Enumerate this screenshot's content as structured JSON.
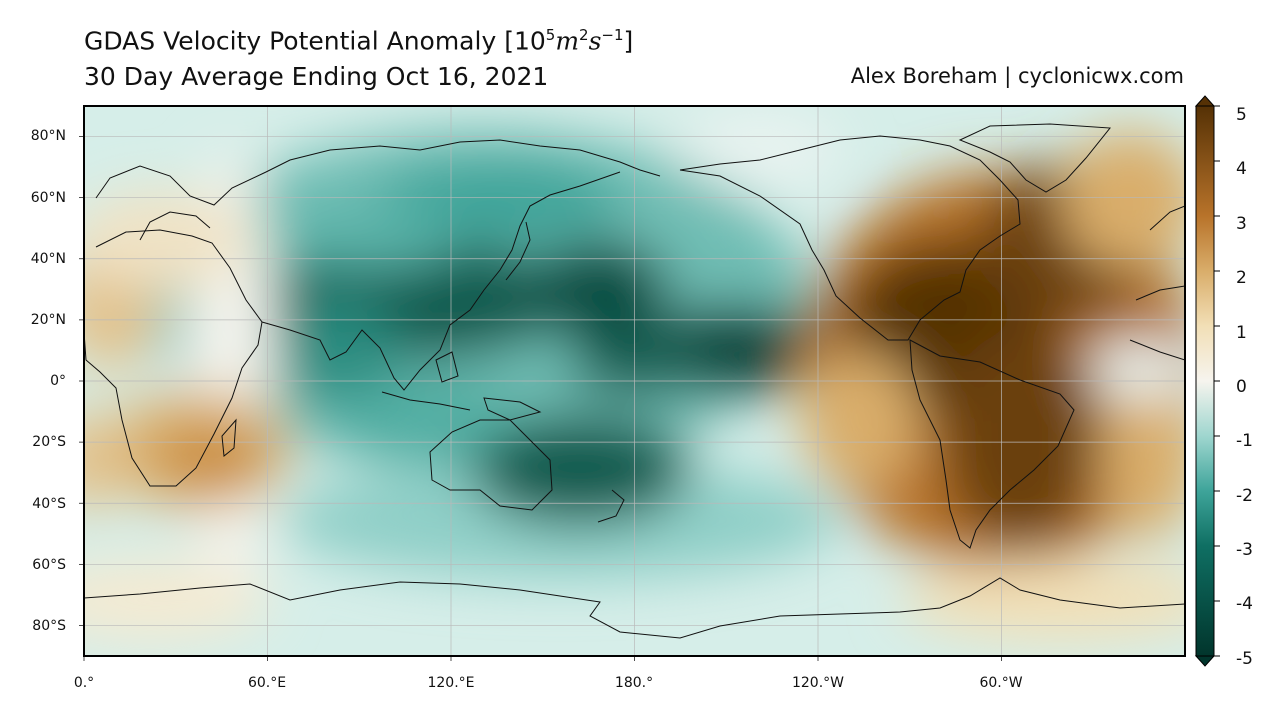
{
  "header": {
    "title_prefix": "GDAS Velocity Potential Anomaly [10",
    "title_exp1": "5",
    "title_m": "m",
    "title_exp2": "2",
    "title_s": "s",
    "title_exp3": "−1",
    "title_suffix": "]",
    "subtitle": "30 Day Average Ending Oct 16, 2021",
    "credit": "Alex Boreham | cyclonicwx.com"
  },
  "axes": {
    "lat_labels": [
      "80°N",
      "60°N",
      "40°N",
      "20°N",
      "0°",
      "20°S",
      "40°S",
      "60°S",
      "80°S"
    ],
    "lon_labels": [
      "0.°",
      "60.°E",
      "120.°E",
      "180.°",
      "120.°W",
      "60.°W"
    ]
  },
  "colorbar": {
    "ticks": [
      "5",
      "4",
      "3",
      "2",
      "1",
      "0",
      "-1",
      "-2",
      "-3",
      "-4",
      "-5"
    ],
    "min": -5,
    "max": 5,
    "colors": {
      "neg5": "#01352c",
      "neg3": "#0f6f63",
      "neg2": "#3ea49a",
      "neg1": "#9fd6cf",
      "zero": "#f6f4ee",
      "pos1": "#f2dfb6",
      "pos2": "#d9ad6a",
      "pos3": "#b8732a",
      "pos5": "#553105"
    }
  },
  "map_data": {
    "projection": "PlateCarree centered 180°",
    "lon_range": [
      0,
      360
    ],
    "lat_range": [
      -90,
      90
    ],
    "anomaly_centers": [
      {
        "lon": 170,
        "lat": 5,
        "value": -4.5
      },
      {
        "lon": 200,
        "lat": 10,
        "value": -4.3
      },
      {
        "lon": 115,
        "lat": 30,
        "value": -4.0
      },
      {
        "lon": 160,
        "lat": 30,
        "value": -3.8
      },
      {
        "lon": 150,
        "lat": -28,
        "value": -4.0
      },
      {
        "lon": 110,
        "lat": 5,
        "value": -3.5
      },
      {
        "lon": 130,
        "lat": 60,
        "value": -2.5
      },
      {
        "lon": 290,
        "lat": 20,
        "value": 5.0
      },
      {
        "lon": 305,
        "lat": 0,
        "value": 4.8
      },
      {
        "lon": 310,
        "lat": -25,
        "value": 4.2
      },
      {
        "lon": 290,
        "lat": 55,
        "value": 4.0
      },
      {
        "lon": 330,
        "lat": 50,
        "value": 3.0
      },
      {
        "lon": 35,
        "lat": -25,
        "value": 2.5
      },
      {
        "lon": 5,
        "lat": 30,
        "value": 1.5
      }
    ]
  }
}
